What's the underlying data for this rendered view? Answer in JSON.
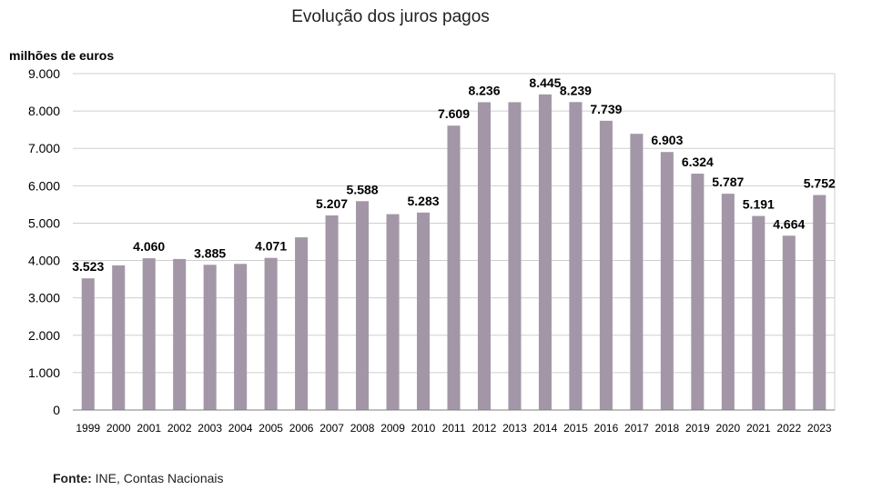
{
  "chart_data": {
    "type": "bar",
    "title": "Evolução dos juros pagos",
    "ylabel": "milhões de euros",
    "xlabel": "",
    "ylim": [
      0,
      9000
    ],
    "yticks": [
      0,
      1000,
      2000,
      3000,
      4000,
      5000,
      6000,
      7000,
      8000,
      9000
    ],
    "ytick_labels": [
      "0",
      "1.000",
      "2.000",
      "3.000",
      "4.000",
      "5.000",
      "6.000",
      "7.000",
      "8.000",
      "9.000"
    ],
    "grid": true,
    "bar_color": "#a397a7",
    "categories": [
      "1999",
      "2000",
      "2001",
      "2002",
      "2003",
      "2004",
      "2005",
      "2006",
      "2007",
      "2008",
      "2009",
      "2010",
      "2011",
      "2012",
      "2013",
      "2014",
      "2015",
      "2016",
      "2017",
      "2018",
      "2019",
      "2020",
      "2021",
      "2022",
      "2023"
    ],
    "values": [
      3523,
      3870,
      4060,
      4040,
      3885,
      3910,
      4071,
      4620,
      5207,
      5588,
      5240,
      5283,
      7609,
      8236,
      8236,
      8445,
      8239,
      7739,
      7390,
      6903,
      6324,
      5787,
      5191,
      4664,
      5752
    ],
    "data_labels": [
      "3.523",
      null,
      "4.060",
      null,
      "3.885",
      null,
      "4.071",
      null,
      "5.207",
      "5.588",
      null,
      "5.283",
      "7.609",
      "8.236",
      null,
      "8.445",
      "8.239",
      "7.739",
      null,
      "6.903",
      "6.324",
      "5.787",
      "5.191",
      "4.664",
      "5.752"
    ]
  },
  "source": {
    "label": "Fonte:",
    "text": " INE, Contas Nacionais"
  }
}
